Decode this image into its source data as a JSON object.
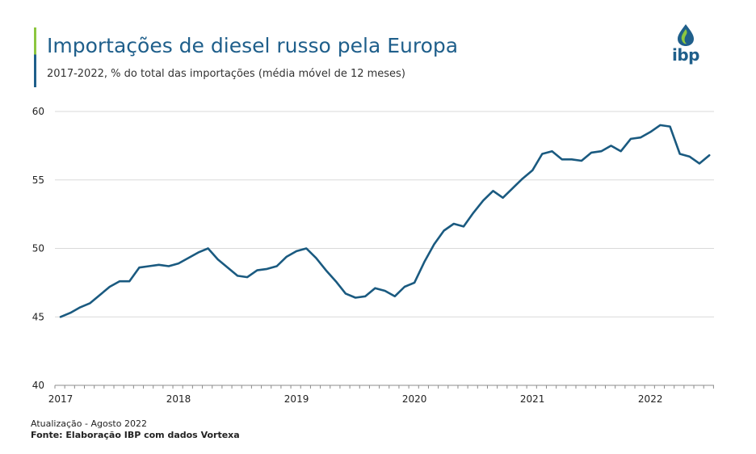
{
  "header": {
    "title": "Importações de diesel russo pela Europa",
    "subtitle": "2017-2022, % do total das importações (média móvel de 12 meses)"
  },
  "logo": {
    "text": "ibp",
    "icon": "flame-drop-icon",
    "colors": [
      "#1f5f8b",
      "#8cc63f"
    ]
  },
  "footer": {
    "update": "Atualização - Agosto 2022",
    "source": "Fonte: Elaboração IBP com dados Vortexa"
  },
  "colors": {
    "line": "#1a5a80",
    "accent": "#1f5f8b",
    "grid": "#d9d9d9"
  },
  "chart_data": {
    "type": "line",
    "title": "Importações de diesel russo pela Europa",
    "subtitle": "2017-2022, % do total das importações (média móvel de 12 meses)",
    "xlabel": "",
    "ylabel": "",
    "ylim": [
      40,
      60
    ],
    "yticks": [
      40,
      45,
      50,
      55,
      60
    ],
    "xticks": [
      "2017",
      "2018",
      "2019",
      "2020",
      "2021",
      "2022"
    ],
    "grid": true,
    "x": [
      "2017-01",
      "2017-02",
      "2017-03",
      "2017-04",
      "2017-05",
      "2017-06",
      "2017-07",
      "2017-08",
      "2017-09",
      "2017-10",
      "2017-11",
      "2017-12",
      "2018-01",
      "2018-02",
      "2018-03",
      "2018-04",
      "2018-05",
      "2018-06",
      "2018-07",
      "2018-08",
      "2018-09",
      "2018-10",
      "2018-11",
      "2018-12",
      "2019-01",
      "2019-02",
      "2019-03",
      "2019-04",
      "2019-05",
      "2019-06",
      "2019-07",
      "2019-08",
      "2019-09",
      "2019-10",
      "2019-11",
      "2019-12",
      "2020-01",
      "2020-02",
      "2020-03",
      "2020-04",
      "2020-05",
      "2020-06",
      "2020-07",
      "2020-08",
      "2020-09",
      "2020-10",
      "2020-11",
      "2020-12",
      "2021-01",
      "2021-02",
      "2021-03",
      "2021-04",
      "2021-05",
      "2021-06",
      "2021-07",
      "2021-08",
      "2021-09",
      "2021-10",
      "2021-11",
      "2021-12",
      "2022-01",
      "2022-02",
      "2022-03",
      "2022-04",
      "2022-05",
      "2022-06",
      "2022-07"
    ],
    "series": [
      {
        "name": "",
        "values": [
          45.0,
          45.3,
          45.7,
          46.0,
          46.6,
          47.2,
          47.6,
          47.6,
          48.6,
          48.7,
          48.8,
          48.7,
          48.9,
          49.3,
          49.7,
          50.0,
          49.2,
          48.6,
          48.0,
          47.9,
          48.4,
          48.5,
          48.7,
          49.4,
          49.8,
          50.0,
          49.3,
          48.4,
          47.6,
          46.7,
          46.4,
          46.5,
          47.1,
          46.9,
          46.5,
          47.2,
          47.5,
          49.0,
          50.3,
          51.3,
          51.8,
          51.6,
          52.6,
          53.5,
          54.2,
          53.7,
          54.4,
          55.1,
          55.7,
          56.9,
          57.1,
          56.5,
          56.5,
          56.4,
          57.0,
          57.1,
          57.5,
          57.1,
          58.0,
          58.1,
          58.5,
          59.0,
          58.9,
          56.9,
          56.7,
          56.2,
          56.8
        ],
        "color": "#1a5a80"
      }
    ]
  }
}
